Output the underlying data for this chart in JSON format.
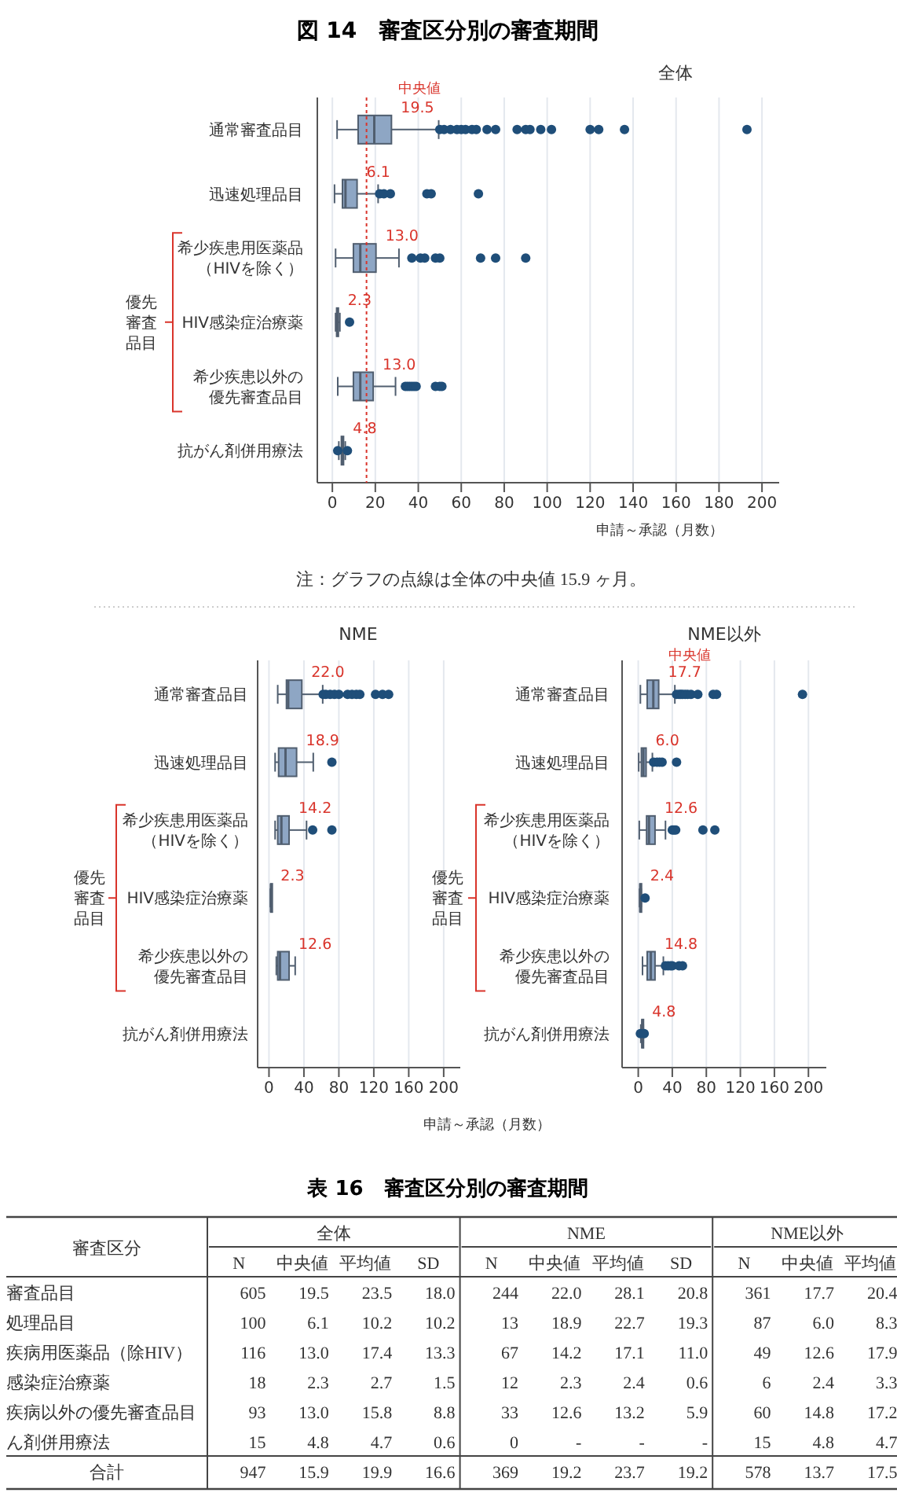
{
  "chart_data": [
    {
      "type": "box",
      "title": "図 14　審査区分別の審査期間",
      "subtitle": "全体",
      "xlabel": "申請～承認（月数）",
      "orientation": "horizontal",
      "grid": "x",
      "categories": [
        "通常審査品目",
        "迅速処理品目",
        "希少疾患用医薬品（HIVを除く）",
        "HIV感染症治療薬",
        "希少疾患以外の優先審査品目",
        "抗がん剤併用療法"
      ],
      "series": [
        {
          "color": "#8ea6c4",
          "boxes": [
            {
              "low": 2.2,
              "q1": 12,
              "median": 19.5,
              "q3": 27.5,
              "high": 49.5,
              "outliers": [
                50,
                52,
                55,
                58,
                60,
                62,
                65,
                67,
                72,
                76,
                86,
                90,
                92,
                97,
                102,
                120,
                124,
                136,
                193
              ]
            },
            {
              "low": 1,
              "q1": 4.7,
              "median": 6.1,
              "q3": 11.5,
              "high": 21.3,
              "outliers": [
                22,
                24,
                27,
                44,
                46,
                68
              ]
            },
            {
              "low": 1.5,
              "q1": 9.8,
              "median": 13.0,
              "q3": 20.3,
              "high": 31,
              "outliers": [
                37,
                41,
                43,
                48,
                50,
                69,
                76,
                90
              ]
            },
            {
              "low": 1.5,
              "q1": 2,
              "median": 2.3,
              "q3": 2.8,
              "high": 3.5,
              "outliers": [
                8
              ]
            },
            {
              "low": 2.5,
              "q1": 9.8,
              "median": 13.0,
              "q3": 19,
              "high": 29.4,
              "outliers": [
                34,
                35,
                36,
                37,
                38,
                39,
                48,
                50,
                51
              ]
            },
            {
              "low": 3,
              "q1": 4.2,
              "median": 4.8,
              "q3": 5.2,
              "high": 6,
              "outliers": [
                2.5,
                7
              ]
            }
          ]
        }
      ],
      "value_labels": [
        "19.5",
        "6.1",
        "13.0",
        "2.3",
        "13.0",
        "4.8"
      ],
      "xlim": [
        -7,
        208
      ],
      "xticks": [
        0,
        20,
        40,
        60,
        80,
        100,
        120,
        140,
        160,
        180,
        200
      ],
      "ref_lines": [
        {
          "axis": "x",
          "value": 15.9,
          "label": "中央値",
          "color": "#d9342b",
          "line_style": "dotted"
        }
      ],
      "annotations": [
        "優先審査品目",
        "注：グラフの点線は全体の中央値 15.9 ヶ月。"
      ]
    },
    {
      "type": "box",
      "subtitle": "NME",
      "xlabel": "申請～承認（月数）",
      "orientation": "horizontal",
      "grid": "x",
      "categories": [
        "通常審査品目",
        "迅速処理品目",
        "希少疾患用医薬品（HIVを除く）",
        "HIV感染症治療薬",
        "希少疾患以外の優先審査品目",
        "抗がん剤併用療法"
      ],
      "series": [
        {
          "color": "#8ea6c4",
          "boxes": [
            {
              "low": 10,
              "q1": 20,
              "median": 22.0,
              "q3": 37.6,
              "high": 61.5,
              "outliers": [
                62,
                65,
                70,
                75,
                80,
                90,
                95,
                100,
                104,
                122,
                130,
                137
              ]
            },
            {
              "low": 7,
              "q1": 11,
              "median": 18.9,
              "q3": 31.6,
              "high": 50.7,
              "outliers": [
                72
              ]
            },
            {
              "low": 7,
              "q1": 10,
              "median": 14.2,
              "q3": 23,
              "high": 43,
              "outliers": [
                50,
                72
              ]
            },
            {
              "low": 1.5,
              "q1": 2,
              "median": 2.3,
              "q3": 2.6,
              "high": 3
            },
            {
              "low": 8.4,
              "q1": 10,
              "median": 12.6,
              "q3": 23,
              "high": 30
            },
            null
          ]
        }
      ],
      "value_labels": [
        "22.0",
        "18.9",
        "14.2",
        "2.3",
        "12.6",
        null
      ],
      "xlim": [
        -13,
        219
      ],
      "xticks": [
        0,
        40,
        80,
        120,
        160,
        200
      ],
      "annotations": [
        "優先審査品目"
      ]
    },
    {
      "type": "box",
      "subtitle": "NME以外",
      "orientation": "horizontal",
      "grid": "x",
      "categories": [
        "通常審査品目",
        "迅速処理品目",
        "希少疾患用医薬品（HIVを除く）",
        "HIV感染症治療薬",
        "希少疾患以外の優先審査品目",
        "抗がん剤併用療法"
      ],
      "series": [
        {
          "color": "#8ea6c4",
          "boxes": [
            {
              "low": 2.5,
              "q1": 10.5,
              "median": 17.7,
              "q3": 24,
              "high": 43,
              "outliers": [
                45,
                48,
                50,
                52,
                55,
                58,
                62,
                70,
                88,
                92,
                193
              ]
            },
            {
              "low": 0.5,
              "q1": 3.7,
              "median": 6.0,
              "q3": 9.2,
              "high": 16.6,
              "outliers": [
                18,
                22,
                25,
                28,
                45
              ]
            },
            {
              "low": 1.2,
              "q1": 9.8,
              "median": 12.6,
              "q3": 19.7,
              "high": 32,
              "outliers": [
                40,
                42,
                44,
                76,
                90
              ]
            },
            {
              "low": 1.5,
              "q1": 2,
              "median": 2.4,
              "q3": 3,
              "high": 3.5,
              "outliers": [
                8
              ]
            },
            {
              "low": 5,
              "q1": 10.5,
              "median": 14.8,
              "q3": 19.7,
              "high": 29.5,
              "outliers": [
                32,
                35,
                38,
                40,
                48,
                52
              ]
            },
            {
              "low": 3,
              "q1": 4.3,
              "median": 4.8,
              "q3": 5.2,
              "high": 6,
              "outliers": [
                2.5,
                7
              ]
            }
          ]
        }
      ],
      "value_labels": [
        "17.7",
        "6.0",
        "12.6",
        "2.4",
        "14.8",
        "4.8"
      ],
      "xlim": [
        -19,
        221
      ],
      "xticks": [
        0,
        40,
        80,
        120,
        160,
        200
      ],
      "annotations": [
        "優先審査品目",
        "中央値"
      ]
    },
    {
      "type": "other",
      "title": "表 16　審査区分別の審査期間",
      "annotations": [
        "全体",
        "NME",
        "NME以外"
      ],
      "categories": [
        "審査区分",
        "N",
        "中央値",
        "平均値",
        "SD",
        "N",
        "中央値",
        "平均値",
        "SD",
        "N",
        "中央値",
        "平均値"
      ],
      "y_categories": [
        "審査品目",
        "処理品目",
        "疾病用医薬品（除HIV）",
        "感染症治療薬",
        "疾病以外の優先審査品目",
        "ん剤併用療法",
        "合計"
      ],
      "cell_labels": [
        [
          "605",
          "19.5",
          "23.5",
          "18.0",
          "244",
          "22.0",
          "28.1",
          "20.8",
          "361",
          "17.7",
          "20.4"
        ],
        [
          "100",
          "6.1",
          "10.2",
          "10.2",
          "13",
          "18.9",
          "22.7",
          "19.3",
          "87",
          "6.0",
          "8.3"
        ],
        [
          "116",
          "13.0",
          "17.4",
          "13.3",
          "67",
          "14.2",
          "17.1",
          "11.0",
          "49",
          "12.6",
          "17.9"
        ],
        [
          "18",
          "2.3",
          "2.7",
          "1.5",
          "12",
          "2.3",
          "2.4",
          "0.6",
          "6",
          "2.4",
          "3.3"
        ],
        [
          "93",
          "13.0",
          "15.8",
          "8.8",
          "33",
          "12.6",
          "13.2",
          "5.9",
          "60",
          "14.8",
          "17.2"
        ],
        [
          "15",
          "4.8",
          "4.7",
          "0.6",
          "0",
          "-",
          "-",
          "-",
          "15",
          "4.8",
          "4.7"
        ],
        [
          "947",
          "15.9",
          "19.9",
          "16.6",
          "369",
          "19.2",
          "23.7",
          "19.2",
          "578",
          "13.7",
          "17.5"
        ]
      ]
    }
  ]
}
